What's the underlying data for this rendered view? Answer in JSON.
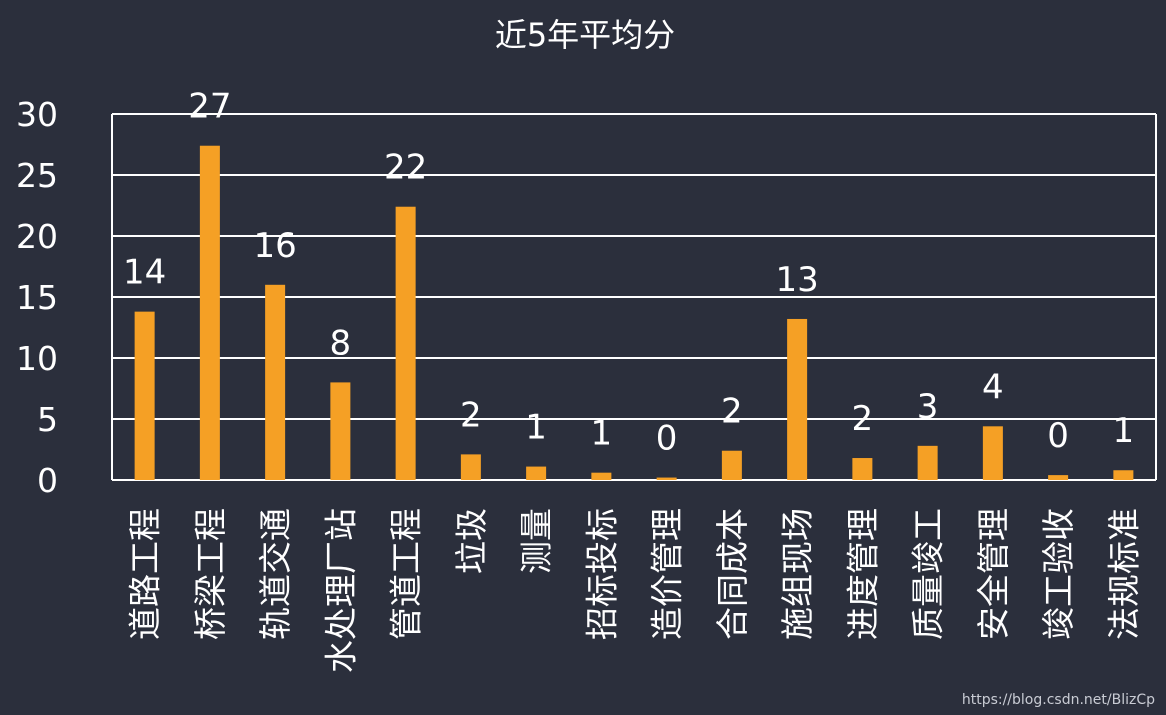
{
  "chart_data": {
    "type": "bar",
    "title": "近5年平均分",
    "categories": [
      "道路工程",
      "桥梁工程",
      "轨道交通",
      "水处理厂站",
      "管道工程",
      "垃圾",
      "测量",
      "招标投标",
      "造价管理",
      "合同成本",
      "施组现场",
      "进度管理",
      "质量竣工",
      "安全管理",
      "竣工验收",
      "法规标准"
    ],
    "values": [
      13.8,
      27.4,
      16.0,
      8.0,
      22.4,
      2.1,
      1.1,
      0.6,
      0.2,
      2.4,
      13.2,
      1.8,
      2.8,
      4.4,
      0.4,
      0.8
    ],
    "data_labels": [
      "14",
      "27",
      "16",
      "8",
      "22",
      "2",
      "1",
      "1",
      "0",
      "2",
      "13",
      "2",
      "3",
      "4",
      "0",
      "1"
    ],
    "ylim": [
      0,
      30
    ],
    "yticks": [
      0,
      5,
      10,
      15,
      20,
      25,
      30
    ],
    "grid": true,
    "bar_color": "#f5a025",
    "grid_color": "#ffffff",
    "background": "#2b2f3c"
  },
  "watermark": "https://blog.csdn.net/BlizCp"
}
